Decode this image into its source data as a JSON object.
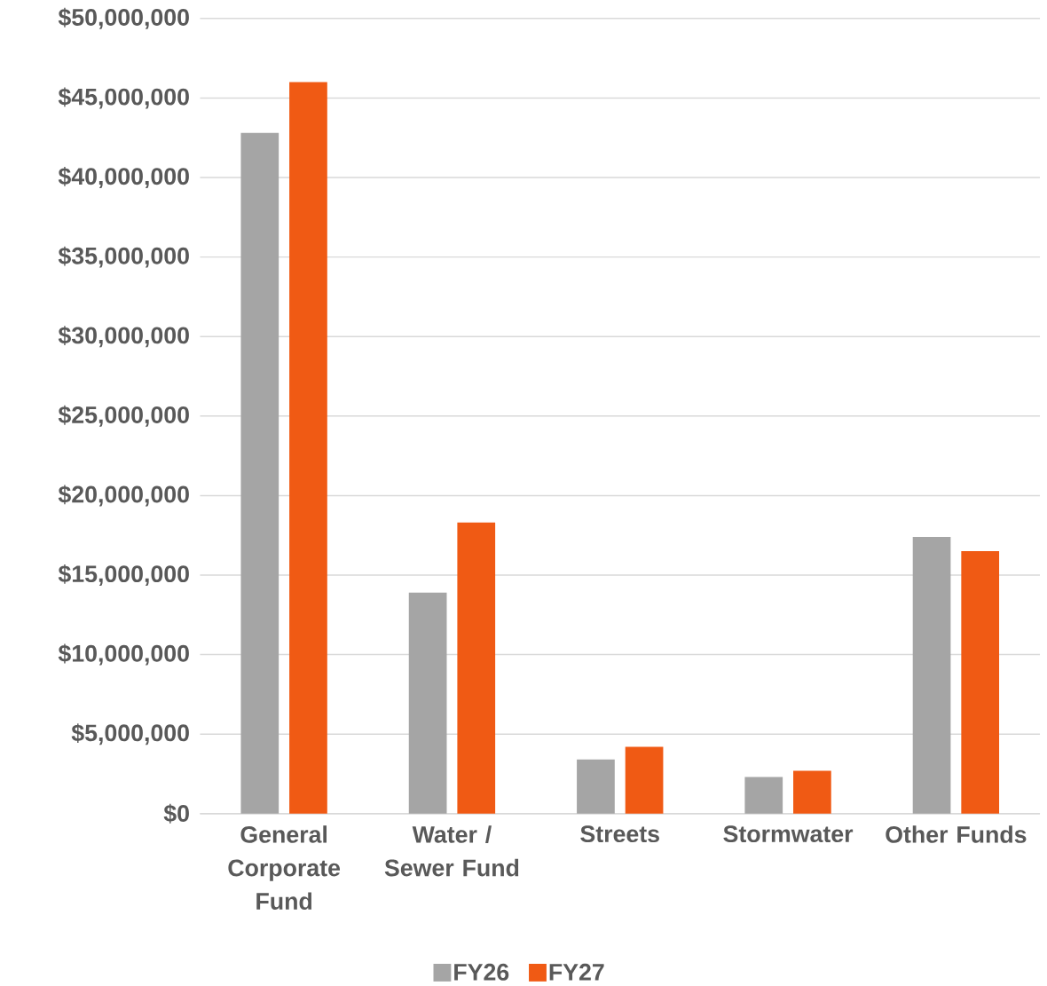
{
  "chart_data": {
    "type": "bar",
    "categories": [
      "General Corporate Fund",
      "Water / Sewer Fund",
      "Streets",
      "Stormwater",
      "Other Funds"
    ],
    "series": [
      {
        "name": "FY26",
        "color": "#a5a5a5",
        "values": [
          42800000,
          13900000,
          3400000,
          2300000,
          17400000
        ]
      },
      {
        "name": "FY27",
        "color": "#f05a14",
        "values": [
          46000000,
          18300000,
          4200000,
          2700000,
          16500000
        ]
      }
    ],
    "ylim": [
      0,
      50000000
    ],
    "yticks": [
      {
        "value": 0,
        "label": "$0"
      },
      {
        "value": 5000000,
        "label": "$5,000,000"
      },
      {
        "value": 10000000,
        "label": "$10,000,000"
      },
      {
        "value": 15000000,
        "label": "$15,000,000"
      },
      {
        "value": 20000000,
        "label": "$20,000,000"
      },
      {
        "value": 25000000,
        "label": "$25,000,000"
      },
      {
        "value": 30000000,
        "label": "$30,000,000"
      },
      {
        "value": 35000000,
        "label": "$35,000,000"
      },
      {
        "value": 40000000,
        "label": "$40,000,000"
      },
      {
        "value": 45000000,
        "label": "$45,000,000"
      },
      {
        "value": 50000000,
        "label": "$50,000,000"
      }
    ],
    "grid": "y",
    "legend": "bottom"
  }
}
